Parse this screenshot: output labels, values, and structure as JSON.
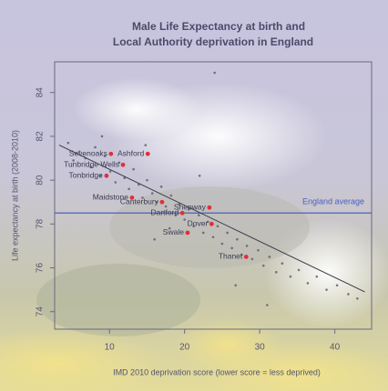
{
  "chart_data": {
    "type": "scatter",
    "title": "Male Life Expectancy at birth and",
    "subtitle": "Local Authority deprivation in England",
    "x_label": "IMD 2010 deprivation score (lower score = less deprived)",
    "y_label": "Life expectancy at birth (2008-2010)",
    "xlim": [
      2.7,
      44.9
    ],
    "ylim": [
      73.2,
      85.4
    ],
    "xticks": [
      10,
      20,
      30,
      40
    ],
    "yticks": [
      74,
      76,
      78,
      80,
      82,
      84
    ],
    "series": [
      {
        "color": "#5a5a6a",
        "x": [
          4.5,
          5.2,
          6.0,
          6.8,
          7.5,
          8.1,
          8.8,
          9.4,
          10.1,
          10.8,
          11.3,
          12.0,
          12.6,
          13.2,
          13.9,
          14.4,
          15.0,
          15.7,
          16.3,
          16.9,
          17.5,
          18.2,
          18.8,
          19.3,
          20.0,
          20.6,
          21.2,
          21.9,
          22.5,
          23.1,
          23.8,
          24.4,
          25.0,
          25.7,
          26.3,
          27.0,
          27.6,
          28.3,
          29.0,
          29.8,
          30.5,
          31.3,
          32.2,
          33.0,
          34.1,
          35.2,
          36.4,
          37.6,
          38.9,
          40.3,
          41.8,
          43.0,
          9.0,
          14.8,
          18.0,
          22.0,
          26.8,
          31.0,
          24.0,
          16.0
        ],
        "y": [
          81.7,
          80.9,
          81.3,
          81.0,
          80.6,
          81.5,
          80.2,
          81.1,
          80.4,
          79.9,
          80.8,
          80.1,
          79.6,
          80.5,
          79.8,
          79.2,
          80.0,
          79.4,
          79.0,
          79.7,
          78.8,
          79.3,
          78.4,
          78.9,
          78.2,
          78.7,
          77.9,
          78.4,
          77.6,
          78.1,
          77.4,
          77.9,
          77.1,
          77.6,
          76.9,
          77.3,
          76.6,
          77.0,
          76.4,
          76.8,
          76.1,
          76.5,
          75.8,
          76.2,
          75.6,
          75.9,
          75.3,
          75.6,
          75.0,
          75.2,
          74.8,
          74.6,
          82.0,
          81.6,
          77.8,
          80.2,
          75.2,
          74.3,
          84.9,
          77.3
        ]
      }
    ],
    "labelled": [
      {
        "name": "Sevenoaks",
        "x": 10.2,
        "y": 81.2
      },
      {
        "name": "Ashford",
        "x": 15.1,
        "y": 81.2
      },
      {
        "name": "Tunbridge Wells",
        "x": 11.8,
        "y": 80.7
      },
      {
        "name": "Tonbridge",
        "x": 9.6,
        "y": 80.2
      },
      {
        "name": "Maidstone",
        "x": 13.0,
        "y": 79.2
      },
      {
        "name": "Canterbury",
        "x": 17.0,
        "y": 79.0
      },
      {
        "name": "Shepway",
        "x": 23.3,
        "y": 78.75
      },
      {
        "name": "Dartford",
        "x": 19.7,
        "y": 78.5
      },
      {
        "name": "Dover",
        "x": 23.6,
        "y": 78.0
      },
      {
        "name": "Swale",
        "x": 20.4,
        "y": 77.6
      },
      {
        "name": "Thanet",
        "x": 28.2,
        "y": 76.5
      }
    ],
    "reference_line": {
      "label": "England average",
      "y": 78.5,
      "color": "#4a5fc0"
    },
    "trend_line": {
      "x": [
        3.3,
        44.0
      ],
      "y": [
        81.6,
        74.9
      ]
    },
    "point_color": "#e0303a"
  }
}
